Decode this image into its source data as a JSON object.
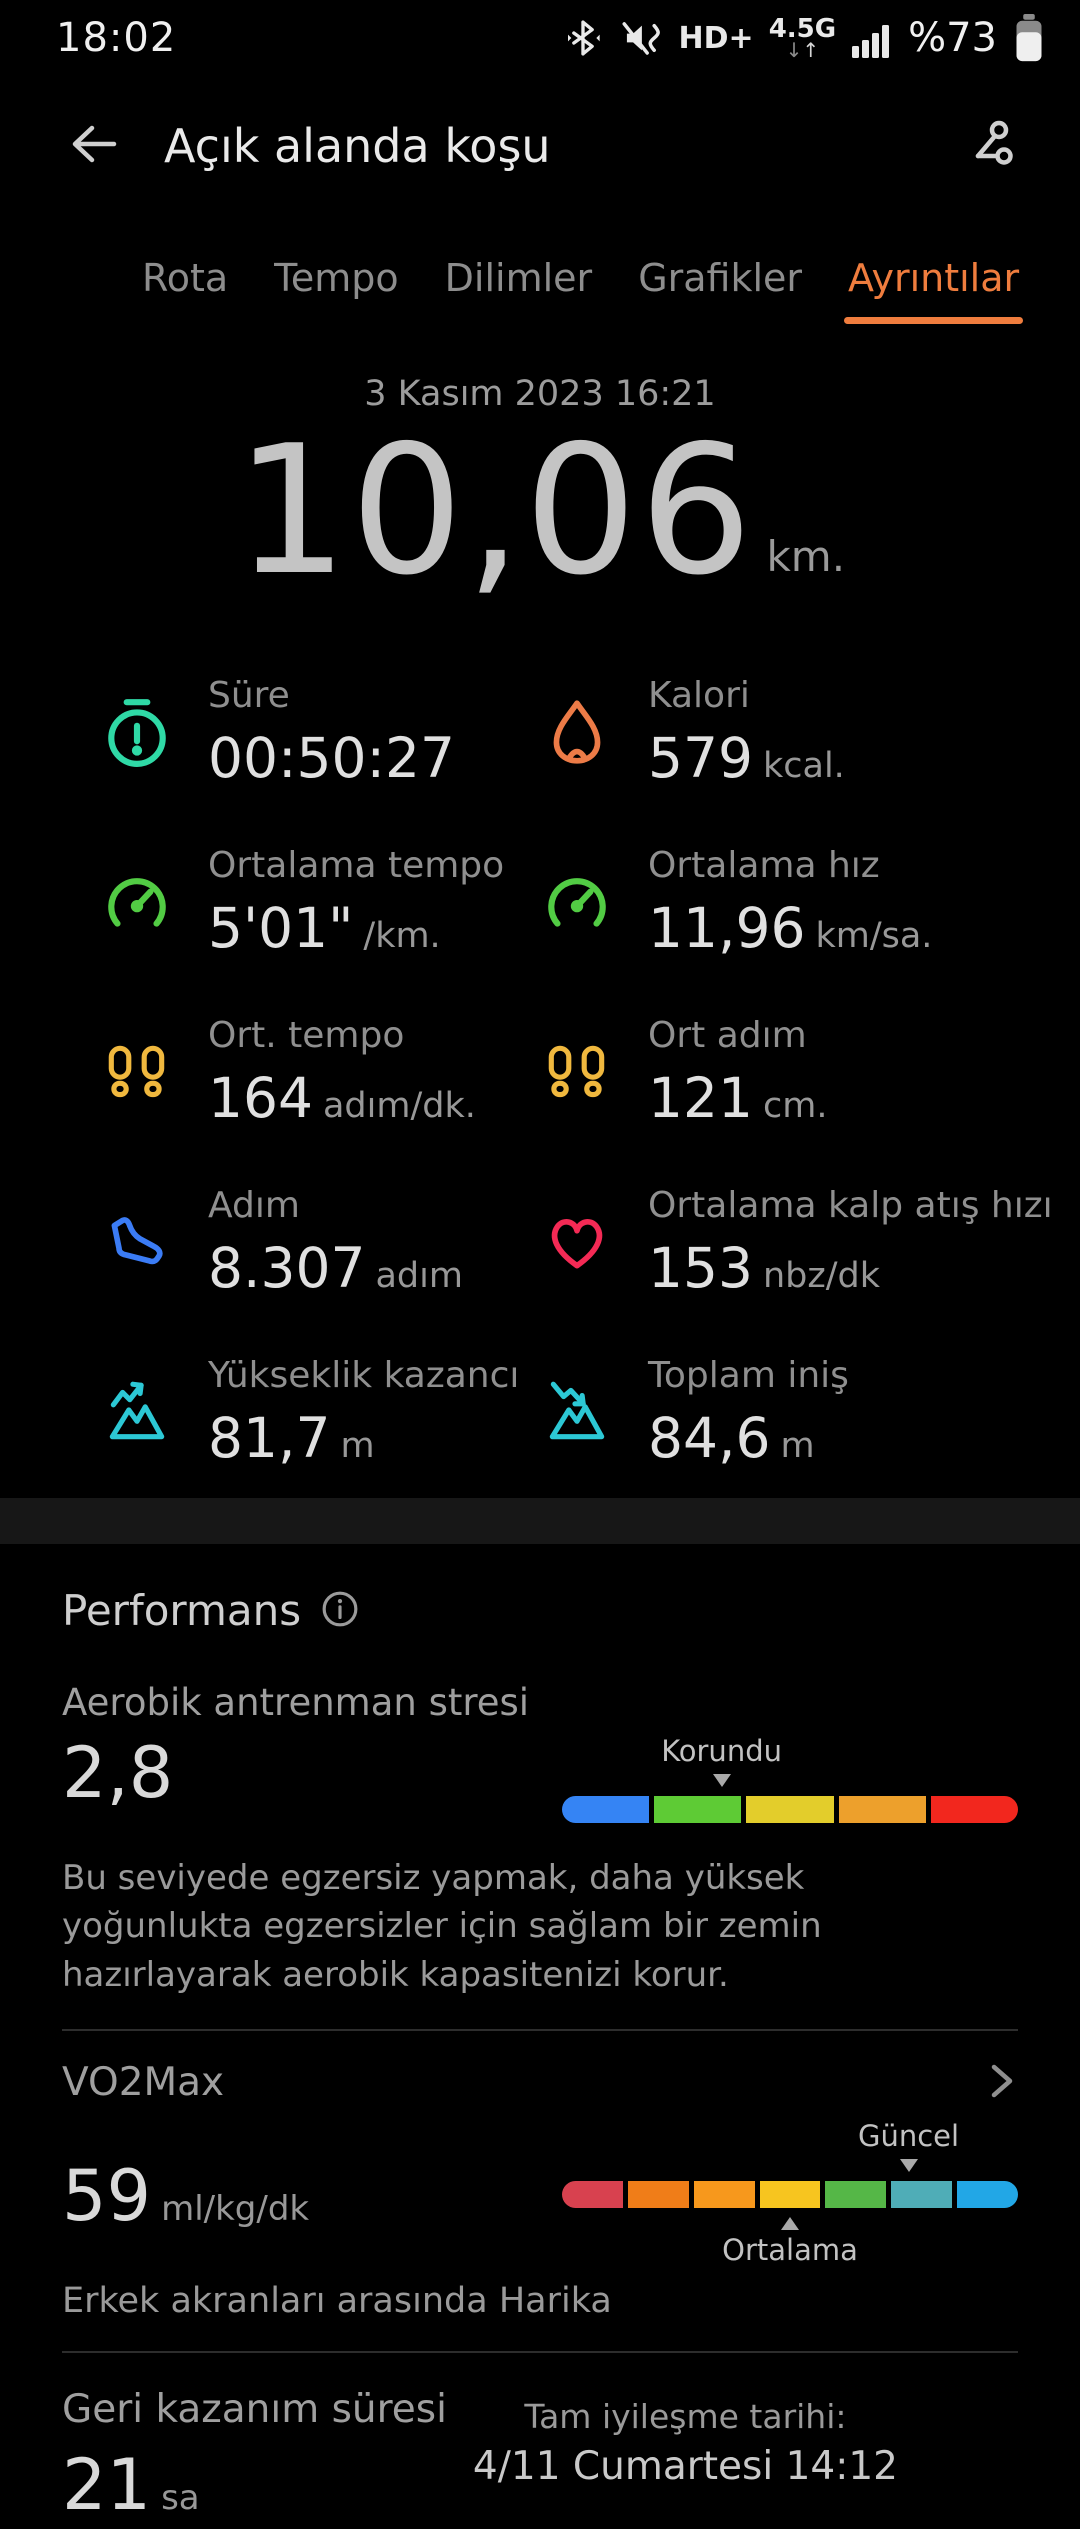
{
  "status_bar": {
    "time": "18:02",
    "hd_label": "HD+",
    "network_type": "4.5G",
    "battery_percent": "%73",
    "icons": [
      "bluetooth-icon",
      "mute-vibrate-icon",
      "signal-icon",
      "battery-icon"
    ]
  },
  "header": {
    "title": "Açık alanda koşu"
  },
  "tabs": {
    "accent_color": "#ef7d3e",
    "items": [
      {
        "label": "Rota",
        "active": false
      },
      {
        "label": "Tempo",
        "active": false
      },
      {
        "label": "Dilimler",
        "active": false
      },
      {
        "label": "Grafikler",
        "active": false
      },
      {
        "label": "Ayrıntılar",
        "active": true
      }
    ]
  },
  "summary": {
    "datetime": "3 Kasım 2023 16:21",
    "distance_value": "10,06",
    "distance_unit": "km."
  },
  "stats": [
    {
      "icon": "stopwatch-icon",
      "color": "#2fd9a6",
      "label": "Süre",
      "value": "00:50:27",
      "unit": ""
    },
    {
      "icon": "flame-icon",
      "color": "#ec7b47",
      "label": "Kalori",
      "value": "579",
      "unit": "kcal."
    },
    {
      "icon": "gauge-icon",
      "color": "#52cc44",
      "label": "Ortalama tempo",
      "value": "5'01\"",
      "unit": "/km."
    },
    {
      "icon": "gauge-icon",
      "color": "#52cc44",
      "label": "Ortalama hız",
      "value": "11,96",
      "unit": "km/sa."
    },
    {
      "icon": "footprints-icon",
      "color": "#f0b83e",
      "label": "Ort. tempo",
      "value": "164",
      "unit": "adım/dk."
    },
    {
      "icon": "footprints-icon",
      "color": "#f0b83e",
      "label": "Ort adım",
      "value": "121",
      "unit": "cm."
    },
    {
      "icon": "shoe-icon",
      "color": "#3b7cf5",
      "label": "Adım",
      "value": "8.307",
      "unit": "adım"
    },
    {
      "icon": "heart-icon",
      "color": "#f42a55",
      "label": "Ortalama kalp atış hızı",
      "value": "153",
      "unit": "nbz/dk"
    },
    {
      "icon": "mountain-up-icon",
      "color": "#2cc8d5",
      "label": "Yükseklik kazancı",
      "value": "81,7",
      "unit": "m"
    },
    {
      "icon": "mountain-down-icon",
      "color": "#2cc8d5",
      "label": "Toplam iniş",
      "value": "84,6",
      "unit": "m"
    }
  ],
  "performance": {
    "heading": "Performans",
    "ats": {
      "label": "Aerobik antrenman stresi",
      "value": "2,8",
      "marker": {
        "label": "Korundu",
        "percent": 35
      },
      "segments": [
        "#3584f4",
        "#5ecb35",
        "#e3cd2b",
        "#eda02c",
        "#f2271e"
      ],
      "description": "Bu seviyede egzersiz yapmak, daha yüksek yoğunlukta egzersizler için sağlam bir zemin hazırlayarak aerobik kapasitenizi korur."
    },
    "vo2max": {
      "label": "VO2Max",
      "value": "59",
      "unit": "ml/kg/dk",
      "segments": [
        "#d8414f",
        "#f07d18",
        "#f7981c",
        "#f7c51f",
        "#55b747",
        "#4fadb7",
        "#22a7e6"
      ],
      "current": {
        "label": "Güncel",
        "percent": 76
      },
      "average": {
        "label": "Ortalama",
        "percent": 50
      },
      "note": "Erkek akranları arasında Harika"
    },
    "recovery": {
      "label": "Geri kazanım süresi",
      "value": "21",
      "unit": "sa",
      "full_label": "Tam iyileşme tarihi:",
      "full_date": "4/11 Cumartesi 14:12"
    }
  }
}
